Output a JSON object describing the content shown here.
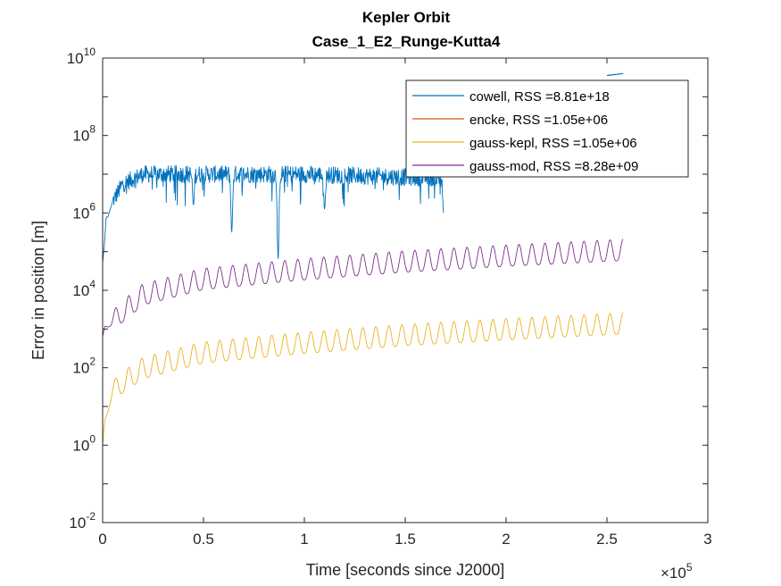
{
  "chart_data": {
    "type": "line",
    "title": "Kepler Orbit",
    "subtitle": "Case_1_E2_Runge-Kutta4",
    "xlabel": "Time [seconds since J2000]",
    "ylabel": "Error in position [m]",
    "x_multiplier_label": "×10",
    "x_multiplier_exponent": "5",
    "x_scale": 100000,
    "xlim": [
      0,
      3
    ],
    "ylim_log10": [
      -2,
      10
    ],
    "y_scale": "log",
    "grid": false,
    "legend_position": "top-right",
    "x_ticks": [
      {
        "value": 0,
        "label": "0"
      },
      {
        "value": 0.5,
        "label": "0.5"
      },
      {
        "value": 1,
        "label": "1"
      },
      {
        "value": 1.5,
        "label": "1.5"
      },
      {
        "value": 2,
        "label": "2"
      },
      {
        "value": 2.5,
        "label": "2.5"
      },
      {
        "value": 3,
        "label": "3"
      }
    ],
    "y_ticks": [
      {
        "exp": -2,
        "base": "10",
        "power": "-2"
      },
      {
        "exp": 0,
        "base": "10",
        "power": "0"
      },
      {
        "exp": 2,
        "base": "10",
        "power": "2"
      },
      {
        "exp": 4,
        "base": "10",
        "power": "4"
      },
      {
        "exp": 6,
        "base": "10",
        "power": "6"
      },
      {
        "exp": 8,
        "base": "10",
        "power": "8"
      },
      {
        "exp": 10,
        "base": "10",
        "power": "10"
      }
    ],
    "series": [
      {
        "name": "cowell, RSS =8.81e+18",
        "color": "#0072BD",
        "x_end": 1.69,
        "x_end_late": 2.58,
        "trend": [
          [
            0,
            4.7
          ],
          [
            0.02,
            5.8
          ],
          [
            0.05,
            6.3
          ],
          [
            0.1,
            6.75
          ],
          [
            0.2,
            7.0
          ],
          [
            1.0,
            7.0
          ],
          [
            1.69,
            6.9
          ]
        ],
        "spike_dips": [
          [
            0.02,
            5.9
          ],
          [
            0.45,
            6.2
          ],
          [
            0.64,
            5.5
          ],
          [
            0.87,
            4.8
          ],
          [
            1.1,
            6.1
          ],
          [
            1.69,
            6.0
          ]
        ],
        "late_points": [
          [
            2.5,
            9.55
          ],
          [
            2.58,
            9.6
          ]
        ]
      },
      {
        "name": "encke, RSS =1.05e+06",
        "color": "#D95319",
        "hidden_under": "gauss-kepl"
      },
      {
        "name": "gauss-kepl, RSS =1.05e+06",
        "color": "#EDB120",
        "x_end": 2.58,
        "start_log": 0.0,
        "trend": [
          [
            0,
            0.4
          ],
          [
            0.05,
            1.5
          ],
          [
            0.2,
            2.05
          ],
          [
            0.5,
            2.45
          ],
          [
            1.0,
            2.7
          ],
          [
            1.5,
            2.9
          ],
          [
            2.0,
            3.05
          ],
          [
            2.58,
            3.2
          ]
        ],
        "oscillation_amplitude": 0.55,
        "periods": 40
      },
      {
        "name": "gauss-mod, RSS =8.28e+09",
        "color": "#7E2F8E",
        "x_end": 2.58,
        "start_log": 2.8,
        "trend": [
          [
            0,
            3.0
          ],
          [
            0.05,
            3.3
          ],
          [
            0.2,
            3.95
          ],
          [
            0.5,
            4.35
          ],
          [
            1.0,
            4.6
          ],
          [
            1.5,
            4.8
          ],
          [
            2.0,
            4.95
          ],
          [
            2.58,
            5.1
          ]
        ],
        "oscillation_amplitude": 0.55,
        "periods": 40
      }
    ]
  }
}
